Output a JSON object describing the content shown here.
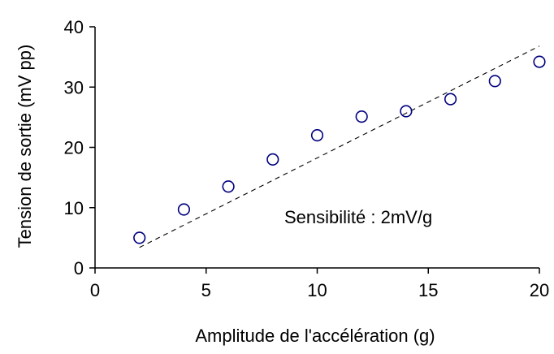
{
  "chart_data": {
    "type": "scatter",
    "xlabel": "Amplitude de l'accélération (g)",
    "ylabel": "Tension de sortie (mV pp)",
    "annotation": "Sensibilité : 2mV/g",
    "xlim": [
      0,
      20
    ],
    "ylim": [
      0,
      40
    ],
    "x_ticks": [
      0,
      5,
      10,
      15,
      20
    ],
    "y_ticks": [
      0,
      10,
      20,
      30,
      40
    ],
    "grid": false,
    "marker": "circle-open",
    "series": [
      {
        "x": [
          2,
          4,
          6,
          8,
          10,
          12,
          14,
          16,
          18,
          20
        ],
        "y": [
          5,
          9.7,
          13.5,
          18,
          22,
          25.1,
          26,
          28,
          31,
          34.2
        ]
      }
    ],
    "trendline": {
      "style": "dashed",
      "x": [
        2,
        20
      ],
      "y": [
        3.4,
        36.8
      ]
    },
    "colors": {
      "marker": "#00007f",
      "axis": "#000000",
      "trend": "#000000"
    }
  }
}
